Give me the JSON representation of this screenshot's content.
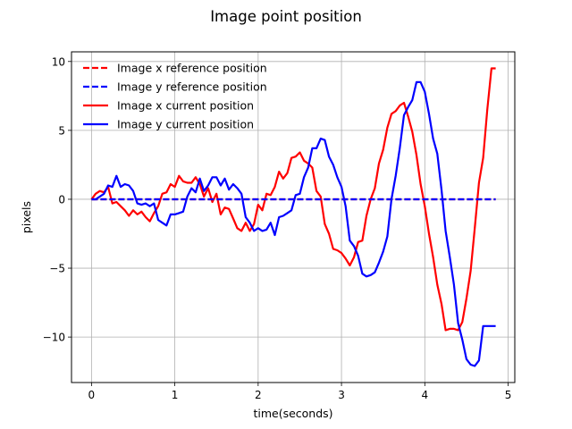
{
  "chart_data": {
    "type": "line",
    "title": "Image point position",
    "xlabel": "time(seconds)",
    "ylabel": "pixels",
    "xlim": [
      -0.24,
      5.08
    ],
    "ylim": [
      -13.3,
      10.7
    ],
    "xticks": [
      0,
      1,
      2,
      3,
      4,
      5
    ],
    "yticks": [
      -10,
      -5,
      0,
      5,
      10
    ],
    "xtick_labels": [
      "0",
      "1",
      "2",
      "3",
      "4",
      "5"
    ],
    "ytick_labels": [
      "−10",
      "−5",
      "0",
      "5",
      "10"
    ],
    "grid": true,
    "legend_position": "top-left",
    "series": [
      {
        "name": "Image x reference position",
        "color": "#ff0000",
        "style": "dashed",
        "x": [
          0,
          4.85
        ],
        "y": [
          0,
          0
        ]
      },
      {
        "name": "Image y reference position",
        "color": "#0000ff",
        "style": "dashed",
        "x": [
          0,
          4.85
        ],
        "y": [
          0,
          0
        ]
      },
      {
        "name": "Image x current position",
        "color": "#ff0000",
        "style": "solid",
        "x": [
          0,
          0.05,
          0.1,
          0.15,
          0.2,
          0.25,
          0.3,
          0.35,
          0.4,
          0.45,
          0.5,
          0.55,
          0.6,
          0.65,
          0.7,
          0.75,
          0.8,
          0.85,
          0.9,
          0.95,
          1.0,
          1.05,
          1.1,
          1.15,
          1.2,
          1.25,
          1.3,
          1.35,
          1.4,
          1.45,
          1.5,
          1.55,
          1.6,
          1.65,
          1.7,
          1.75,
          1.8,
          1.85,
          1.9,
          1.95,
          2.0,
          2.05,
          2.1,
          2.15,
          2.2,
          2.25,
          2.3,
          2.35,
          2.4,
          2.45,
          2.5,
          2.55,
          2.6,
          2.65,
          2.7,
          2.75,
          2.8,
          2.85,
          2.9,
          2.95,
          3.0,
          3.05,
          3.1,
          3.15,
          3.2,
          3.25,
          3.3,
          3.35,
          3.4,
          3.45,
          3.5,
          3.55,
          3.6,
          3.65,
          3.7,
          3.75,
          3.8,
          3.85,
          3.9,
          3.95,
          4.0,
          4.05,
          4.1,
          4.15,
          4.2,
          4.25,
          4.3,
          4.35,
          4.4,
          4.45,
          4.5,
          4.55,
          4.6,
          4.65,
          4.7,
          4.75,
          4.8,
          4.85
        ],
        "y": [
          0,
          0.4,
          0.6,
          0.5,
          0.9,
          -0.3,
          -0.2,
          -0.5,
          -0.8,
          -1.2,
          -0.8,
          -1.1,
          -0.9,
          -1.3,
          -1.6,
          -1.0,
          -0.5,
          0.4,
          0.5,
          1.1,
          0.9,
          1.7,
          1.3,
          1.2,
          1.2,
          1.6,
          1.1,
          0.2,
          0.8,
          -0.2,
          0.4,
          -1.1,
          -0.6,
          -0.7,
          -1.4,
          -2.1,
          -2.3,
          -1.7,
          -2.3,
          -1.8,
          -0.4,
          -0.8,
          0.4,
          0.3,
          0.9,
          2.0,
          1.5,
          1.9,
          3.0,
          3.1,
          3.4,
          2.8,
          2.6,
          2.3,
          0.6,
          0.2,
          -1.8,
          -2.5,
          -3.6,
          -3.7,
          -3.9,
          -4.3,
          -4.8,
          -4.2,
          -3.1,
          -3.0,
          -1.2,
          0.0,
          0.8,
          2.6,
          3.6,
          5.2,
          6.2,
          6.4,
          6.8,
          7.0,
          6.0,
          4.9,
          3.2,
          1.1,
          -0.5,
          -2.5,
          -4.2,
          -6.2,
          -7.6,
          -9.5,
          -9.4,
          -9.4,
          -9.5,
          -8.9,
          -7.2,
          -5.2,
          -2.1,
          1.2,
          3.0,
          6.5,
          9.5,
          9.5
        ]
      },
      {
        "name": "Image y current position",
        "color": "#0000ff",
        "style": "solid",
        "x": [
          0,
          0.05,
          0.1,
          0.15,
          0.2,
          0.25,
          0.3,
          0.35,
          0.4,
          0.45,
          0.5,
          0.55,
          0.6,
          0.65,
          0.7,
          0.75,
          0.8,
          0.85,
          0.9,
          0.95,
          1.0,
          1.05,
          1.1,
          1.15,
          1.2,
          1.25,
          1.3,
          1.35,
          1.4,
          1.45,
          1.5,
          1.55,
          1.6,
          1.65,
          1.7,
          1.75,
          1.8,
          1.85,
          1.9,
          1.95,
          2.0,
          2.05,
          2.1,
          2.15,
          2.2,
          2.25,
          2.3,
          2.35,
          2.4,
          2.45,
          2.5,
          2.55,
          2.6,
          2.65,
          2.7,
          2.75,
          2.8,
          2.85,
          2.9,
          2.95,
          3.0,
          3.05,
          3.1,
          3.15,
          3.2,
          3.25,
          3.3,
          3.35,
          3.4,
          3.45,
          3.5,
          3.55,
          3.6,
          3.65,
          3.7,
          3.75,
          3.8,
          3.85,
          3.9,
          3.95,
          4.0,
          4.05,
          4.1,
          4.15,
          4.2,
          4.25,
          4.3,
          4.35,
          4.4,
          4.45,
          4.5,
          4.55,
          4.6,
          4.65,
          4.7,
          4.75,
          4.8,
          4.85
        ],
        "y": [
          0,
          0.0,
          0.2,
          0.4,
          1.0,
          0.9,
          1.7,
          0.9,
          1.1,
          1.0,
          0.6,
          -0.3,
          -0.4,
          -0.3,
          -0.5,
          -0.3,
          -1.5,
          -1.7,
          -1.9,
          -1.1,
          -1.1,
          -1.0,
          -0.9,
          0.2,
          0.8,
          0.5,
          1.5,
          0.6,
          1.0,
          1.6,
          1.6,
          1.0,
          1.5,
          0.7,
          1.1,
          0.8,
          0.4,
          -1.3,
          -1.7,
          -2.3,
          -2.1,
          -2.3,
          -2.2,
          -1.7,
          -2.6,
          -1.3,
          -1.2,
          -1.0,
          -0.8,
          0.3,
          0.4,
          1.6,
          2.3,
          3.7,
          3.7,
          4.4,
          4.3,
          3.1,
          2.5,
          1.6,
          0.9,
          -0.5,
          -3.0,
          -3.4,
          -4.1,
          -5.4,
          -5.6,
          -5.5,
          -5.3,
          -4.6,
          -3.8,
          -2.7,
          0.0,
          1.7,
          3.7,
          6.1,
          6.7,
          7.2,
          8.5,
          8.5,
          7.8,
          6.2,
          4.4,
          3.3,
          0.7,
          -2.3,
          -4.2,
          -6.2,
          -9.0,
          -10.2,
          -11.6,
          -12.0,
          -12.1,
          -11.7,
          -9.2,
          -9.2,
          -9.2,
          -9.2
        ]
      }
    ]
  }
}
